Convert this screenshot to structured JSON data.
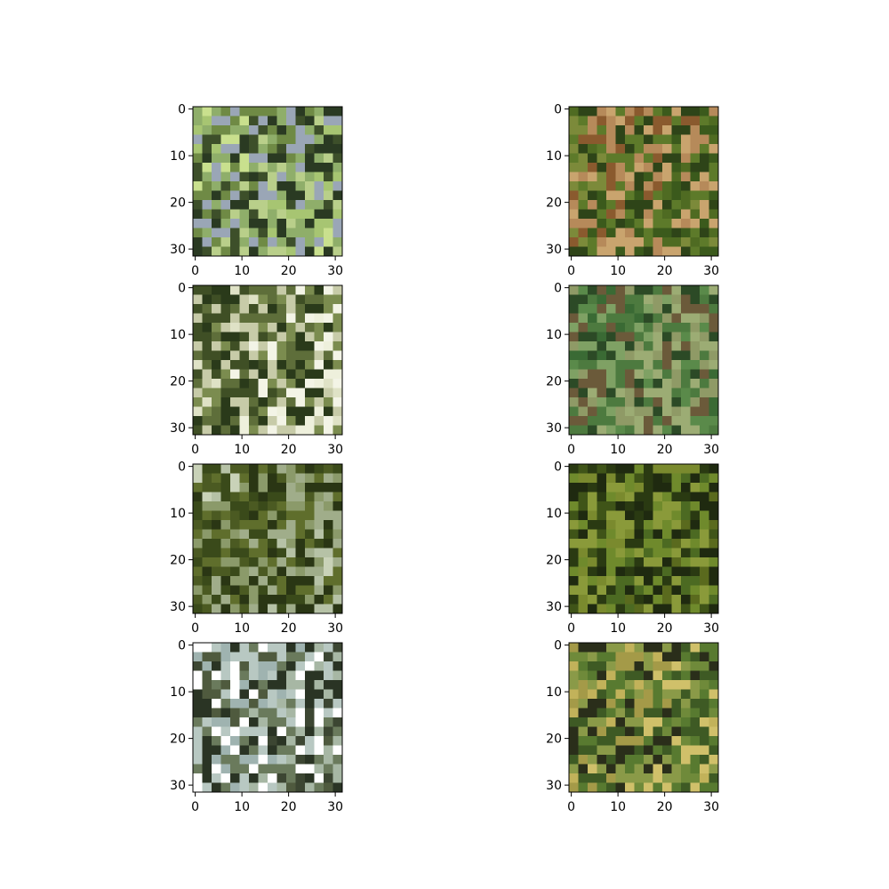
{
  "figure": {
    "background": "#ffffff"
  },
  "chart_data": [
    {
      "type": "image",
      "panel": "row1-left",
      "image_size": [
        32,
        32
      ],
      "xlim": [
        0,
        31
      ],
      "ylim": [
        31,
        0
      ],
      "xticks": [
        0,
        10,
        20,
        30
      ],
      "yticks": [
        0,
        10,
        20,
        30
      ],
      "xtick_labels": [
        "0",
        "10",
        "20",
        "30"
      ],
      "ytick_labels": [
        "0",
        "10",
        "20",
        "30"
      ],
      "palette": [
        "#a7c572",
        "#c9e08e",
        "#6f8a45",
        "#3d4f2a",
        "#8fae6a",
        "#9aa6b6",
        "#2a3a22",
        "#b9cf8a"
      ]
    },
    {
      "type": "image",
      "panel": "row1-right",
      "image_size": [
        32,
        32
      ],
      "xlim": [
        0,
        31
      ],
      "ylim": [
        31,
        0
      ],
      "xticks": [
        0,
        10,
        20,
        30
      ],
      "yticks": [
        0,
        10,
        20,
        30
      ],
      "xtick_labels": [
        "0",
        "10",
        "20",
        "30"
      ],
      "ytick_labels": [
        "0",
        "10",
        "20",
        "30"
      ],
      "palette": [
        "#4f6b22",
        "#7c8a3a",
        "#8a5a2e",
        "#b68a5a",
        "#2e4418",
        "#5d7a2a",
        "#c9a46e",
        "#3b5a1c"
      ]
    },
    {
      "type": "image",
      "panel": "row2-left",
      "image_size": [
        32,
        32
      ],
      "xlim": [
        0,
        31
      ],
      "ylim": [
        31,
        0
      ],
      "xticks": [
        0,
        10,
        20,
        30
      ],
      "yticks": [
        0,
        10,
        20,
        30
      ],
      "xtick_labels": [
        "0",
        "10",
        "20",
        "30"
      ],
      "ytick_labels": [
        "0",
        "10",
        "20",
        "30"
      ],
      "palette": [
        "#eef0dc",
        "#dfe2c6",
        "#3f4f25",
        "#5e6e3a",
        "#2a3a1a",
        "#c7cba8",
        "#7b8c4f",
        "#f3f4e6"
      ]
    },
    {
      "type": "image",
      "panel": "row2-right",
      "image_size": [
        32,
        32
      ],
      "xlim": [
        0,
        31
      ],
      "ylim": [
        31,
        0
      ],
      "xticks": [
        0,
        10,
        20,
        30
      ],
      "yticks": [
        0,
        10,
        20,
        30
      ],
      "xtick_labels": [
        "0",
        "10",
        "20",
        "30"
      ],
      "ytick_labels": [
        "0",
        "10",
        "20",
        "30"
      ],
      "palette": [
        "#5a8a4a",
        "#3a6a34",
        "#7fa164",
        "#2c4a26",
        "#8f9a66",
        "#6b5a3a",
        "#4d7a3f",
        "#9cac74"
      ]
    },
    {
      "type": "image",
      "panel": "row3-left",
      "image_size": [
        32,
        32
      ],
      "xlim": [
        0,
        31
      ],
      "ylim": [
        31,
        0
      ],
      "xticks": [
        0,
        10,
        20,
        30
      ],
      "yticks": [
        0,
        10,
        20,
        30
      ],
      "xtick_labels": [
        "0",
        "10",
        "20",
        "30"
      ],
      "ytick_labels": [
        "0",
        "10",
        "20",
        "30"
      ],
      "palette": [
        "#b6c2a6",
        "#c9d2b8",
        "#4b5a22",
        "#3a4a1a",
        "#5f6e2c",
        "#2a3614",
        "#8b9a6a",
        "#a0ad8a"
      ]
    },
    {
      "type": "image",
      "panel": "row3-right",
      "image_size": [
        32,
        32
      ],
      "xlim": [
        0,
        31
      ],
      "ylim": [
        31,
        0
      ],
      "xticks": [
        0,
        10,
        20,
        30
      ],
      "yticks": [
        0,
        10,
        20,
        30
      ],
      "xtick_labels": [
        "0",
        "10",
        "20",
        "30"
      ],
      "ytick_labels": [
        "0",
        "10",
        "20",
        "30"
      ],
      "palette": [
        "#5a6a1e",
        "#3f5418",
        "#7a8a2e",
        "#2a3a12",
        "#6f8a2c",
        "#1f2a10",
        "#8a9a3a",
        "#4c6a22"
      ]
    },
    {
      "type": "image",
      "panel": "row4-left",
      "image_size": [
        32,
        32
      ],
      "xlim": [
        0,
        31
      ],
      "ylim": [
        31,
        0
      ],
      "xticks": [
        0,
        10,
        20,
        30
      ],
      "yticks": [
        0,
        10,
        20,
        30
      ],
      "xtick_labels": [
        "0",
        "10",
        "20",
        "30"
      ],
      "ytick_labels": [
        "0",
        "10",
        "20",
        "30"
      ],
      "palette": [
        "#3c4632",
        "#4f5a3e",
        "#9fb3b0",
        "#b8c8c2",
        "#2a3424",
        "#ffffff",
        "#6a7a5c",
        "#a7b7a4"
      ]
    },
    {
      "type": "image",
      "panel": "row4-right",
      "image_size": [
        32,
        32
      ],
      "xlim": [
        0,
        31
      ],
      "ylim": [
        31,
        0
      ],
      "xticks": [
        0,
        10,
        20,
        30
      ],
      "yticks": [
        0,
        10,
        20,
        30
      ],
      "xtick_labels": [
        "0",
        "10",
        "20",
        "30"
      ],
      "ytick_labels": [
        "0",
        "10",
        "20",
        "30"
      ],
      "palette": [
        "#6f8a3a",
        "#c2b25a",
        "#a49a48",
        "#2a2e1a",
        "#587a30",
        "#8a9a48",
        "#3e5a24",
        "#d0c06a"
      ]
    }
  ]
}
